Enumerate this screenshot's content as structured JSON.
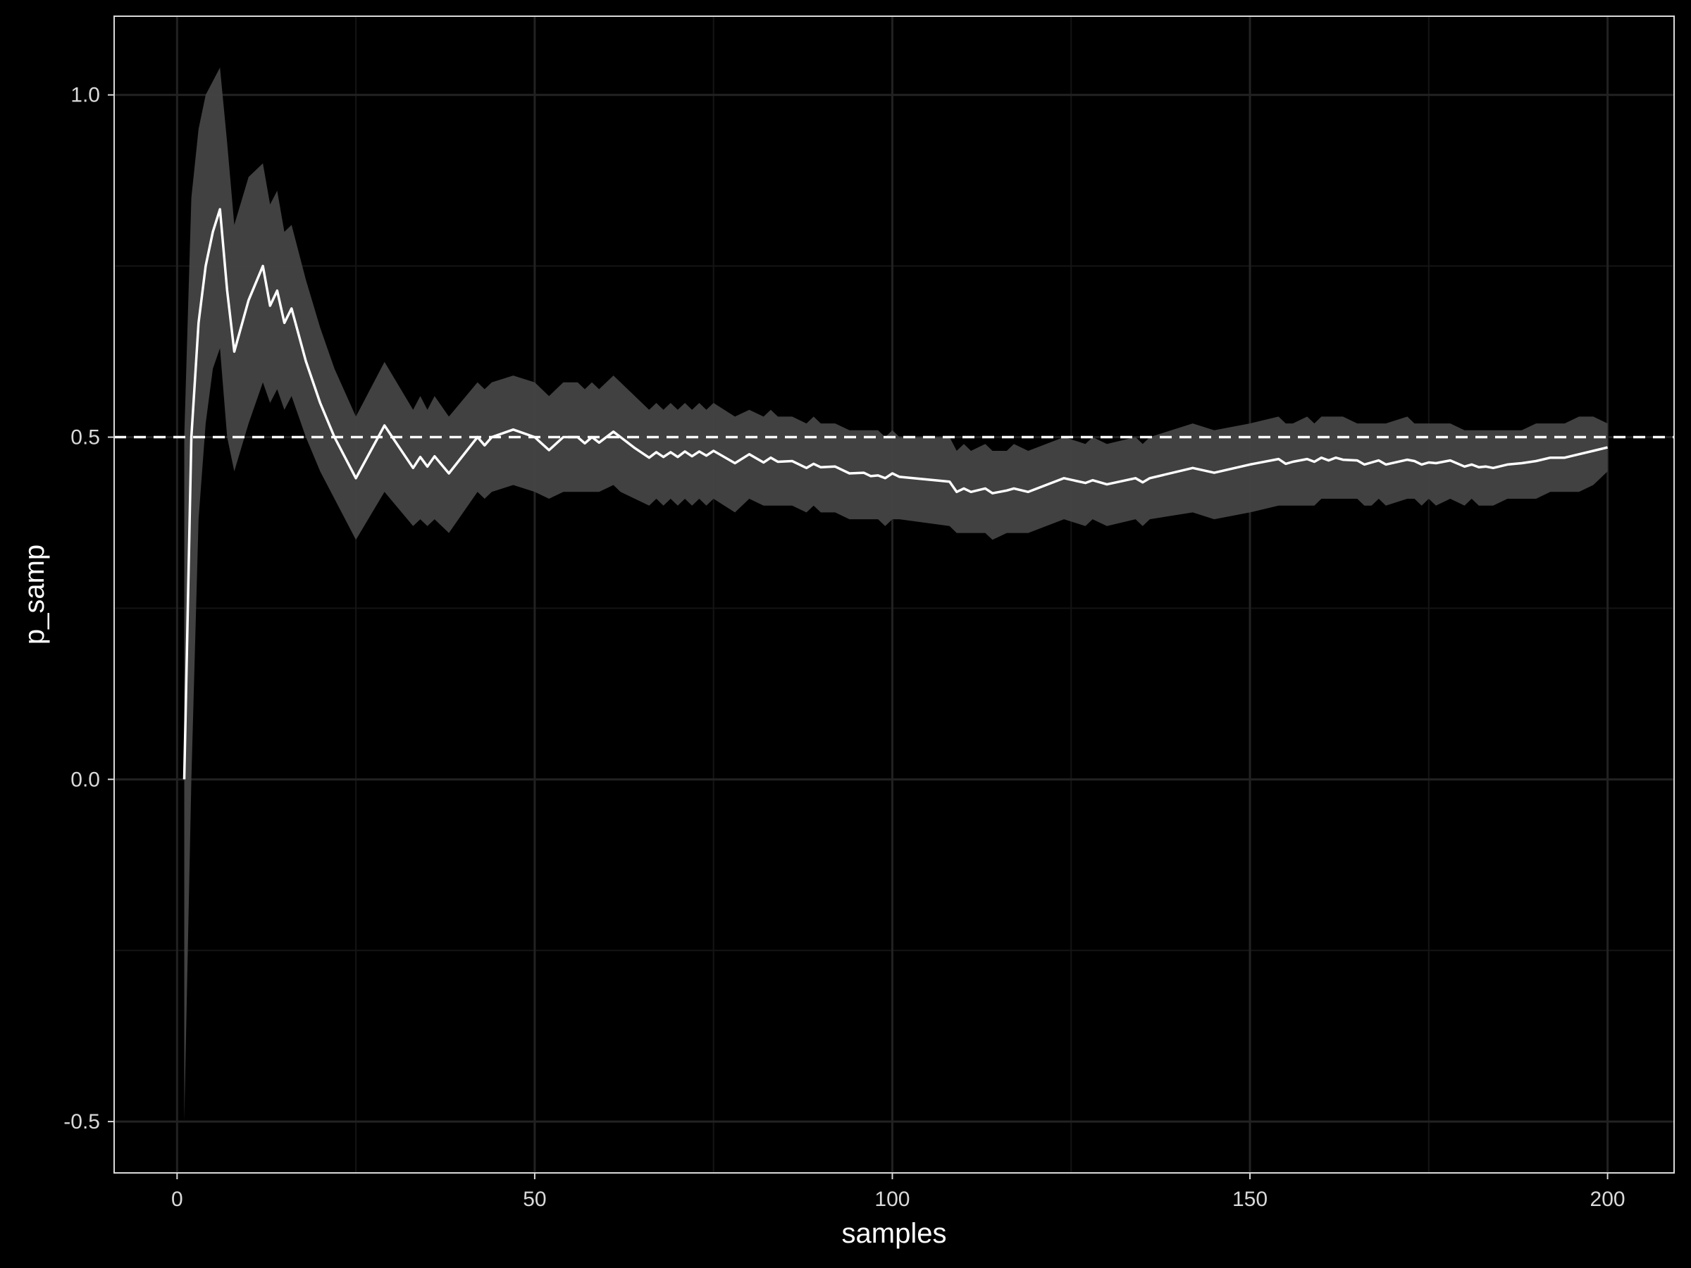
{
  "chart_data": {
    "type": "line",
    "title": "",
    "xlabel": "samples",
    "ylabel": "p_samp",
    "xlim": [
      -8.8,
      209.3
    ],
    "ylim": [
      -0.575,
      1.115
    ],
    "x_ticks": [
      0,
      50,
      100,
      150,
      200
    ],
    "x_tick_labels": [
      "0",
      "50",
      "100",
      "150",
      "200"
    ],
    "y_ticks": [
      -0.5,
      0.0,
      0.5,
      1.0
    ],
    "y_tick_labels": [
      "-0.5",
      "0.0",
      "0.5",
      "1.0"
    ],
    "x_minor_ticks": [
      25,
      75,
      125,
      175
    ],
    "y_minor_ticks": [
      -0.25,
      0.25,
      0.75
    ],
    "grid": true,
    "reference_line": {
      "y": 0.5,
      "style": "dashed",
      "color": "#ffffff"
    },
    "series": [
      {
        "x": [
          1,
          2,
          3,
          4,
          5,
          6,
          7,
          8,
          10,
          12,
          13,
          14,
          15,
          16,
          18,
          20,
          22,
          25,
          29,
          33,
          34,
          35,
          36,
          38,
          42,
          43,
          44,
          47,
          50,
          52,
          54,
          56,
          57,
          58,
          59,
          61,
          62,
          64,
          66,
          67,
          68,
          69,
          70,
          71,
          72,
          73,
          74,
          75,
          78,
          80,
          82,
          83,
          84,
          86,
          88,
          89,
          90,
          92,
          94,
          96,
          97,
          98,
          99,
          100,
          101,
          108,
          109,
          110,
          111,
          113,
          114,
          116,
          117,
          119,
          124,
          127,
          128,
          130,
          134,
          135,
          136,
          142,
          145,
          150,
          154,
          155,
          156,
          158,
          159,
          160,
          161,
          162,
          163,
          165,
          166,
          167,
          168,
          169,
          172,
          173,
          174,
          175,
          176,
          178,
          180,
          181,
          182,
          183,
          184,
          186,
          188,
          190,
          192,
          194,
          196,
          198,
          200
        ],
        "y": [
          0.0,
          0.5,
          0.667,
          0.75,
          0.8,
          0.833,
          0.714,
          0.625,
          0.7,
          0.75,
          0.692,
          0.714,
          0.667,
          0.688,
          0.611,
          0.55,
          0.5,
          0.44,
          0.517,
          0.455,
          0.471,
          0.457,
          0.472,
          0.447,
          0.5,
          0.488,
          0.5,
          0.511,
          0.5,
          0.481,
          0.5,
          0.5,
          0.491,
          0.5,
          0.492,
          0.508,
          0.5,
          0.484,
          0.47,
          0.478,
          0.471,
          0.478,
          0.471,
          0.479,
          0.472,
          0.479,
          0.473,
          0.48,
          0.462,
          0.475,
          0.463,
          0.47,
          0.464,
          0.465,
          0.455,
          0.461,
          0.456,
          0.457,
          0.447,
          0.448,
          0.443,
          0.444,
          0.44,
          0.447,
          0.442,
          0.435,
          0.42,
          0.425,
          0.42,
          0.425,
          0.418,
          0.422,
          0.425,
          0.42,
          0.44,
          0.433,
          0.437,
          0.431,
          0.44,
          0.434,
          0.44,
          0.455,
          0.448,
          0.46,
          0.468,
          0.461,
          0.464,
          0.468,
          0.464,
          0.47,
          0.466,
          0.47,
          0.467,
          0.466,
          0.46,
          0.463,
          0.466,
          0.46,
          0.467,
          0.465,
          0.46,
          0.463,
          0.462,
          0.466,
          0.457,
          0.46,
          0.456,
          0.457,
          0.455,
          0.46,
          0.462,
          0.465,
          0.47,
          0.47,
          0.475,
          0.48,
          0.485
        ],
        "lower": [
          -0.5,
          0.0,
          0.38,
          0.52,
          0.6,
          0.63,
          0.5,
          0.45,
          0.52,
          0.58,
          0.55,
          0.57,
          0.54,
          0.56,
          0.5,
          0.45,
          0.41,
          0.35,
          0.42,
          0.37,
          0.38,
          0.37,
          0.38,
          0.36,
          0.42,
          0.41,
          0.42,
          0.43,
          0.42,
          0.41,
          0.42,
          0.42,
          0.42,
          0.42,
          0.42,
          0.43,
          0.42,
          0.41,
          0.4,
          0.41,
          0.4,
          0.41,
          0.4,
          0.41,
          0.4,
          0.41,
          0.4,
          0.41,
          0.39,
          0.41,
          0.4,
          0.4,
          0.4,
          0.4,
          0.39,
          0.4,
          0.39,
          0.39,
          0.38,
          0.38,
          0.38,
          0.38,
          0.37,
          0.38,
          0.38,
          0.37,
          0.36,
          0.36,
          0.36,
          0.36,
          0.35,
          0.36,
          0.36,
          0.36,
          0.38,
          0.37,
          0.38,
          0.37,
          0.38,
          0.37,
          0.38,
          0.39,
          0.38,
          0.39,
          0.4,
          0.4,
          0.4,
          0.4,
          0.4,
          0.41,
          0.41,
          0.41,
          0.41,
          0.41,
          0.4,
          0.4,
          0.41,
          0.4,
          0.41,
          0.41,
          0.4,
          0.41,
          0.4,
          0.41,
          0.4,
          0.41,
          0.4,
          0.4,
          0.4,
          0.41,
          0.41,
          0.41,
          0.42,
          0.42,
          0.42,
          0.43,
          0.45
        ],
        "upper": [
          0.5,
          0.85,
          0.95,
          1.0,
          1.02,
          1.04,
          0.93,
          0.81,
          0.88,
          0.9,
          0.84,
          0.86,
          0.8,
          0.81,
          0.73,
          0.66,
          0.6,
          0.53,
          0.61,
          0.54,
          0.56,
          0.54,
          0.56,
          0.53,
          0.58,
          0.57,
          0.58,
          0.59,
          0.58,
          0.56,
          0.58,
          0.58,
          0.57,
          0.58,
          0.57,
          0.59,
          0.58,
          0.56,
          0.54,
          0.55,
          0.54,
          0.55,
          0.54,
          0.55,
          0.54,
          0.55,
          0.54,
          0.55,
          0.53,
          0.54,
          0.53,
          0.54,
          0.53,
          0.53,
          0.52,
          0.53,
          0.52,
          0.52,
          0.51,
          0.51,
          0.51,
          0.51,
          0.5,
          0.51,
          0.5,
          0.5,
          0.48,
          0.49,
          0.48,
          0.49,
          0.48,
          0.48,
          0.49,
          0.48,
          0.5,
          0.49,
          0.5,
          0.49,
          0.5,
          0.49,
          0.5,
          0.52,
          0.51,
          0.52,
          0.53,
          0.52,
          0.52,
          0.53,
          0.52,
          0.53,
          0.53,
          0.53,
          0.53,
          0.52,
          0.52,
          0.52,
          0.52,
          0.52,
          0.53,
          0.52,
          0.52,
          0.52,
          0.52,
          0.52,
          0.51,
          0.51,
          0.51,
          0.51,
          0.51,
          0.51,
          0.51,
          0.52,
          0.52,
          0.52,
          0.53,
          0.53,
          0.52
        ]
      }
    ],
    "colors": {
      "background": "#000000",
      "panel_border": "#d9d9d9",
      "grid_major": "#222222",
      "grid_minor": "#141414",
      "line": "#ffffff",
      "ribbon": "#444444"
    }
  }
}
